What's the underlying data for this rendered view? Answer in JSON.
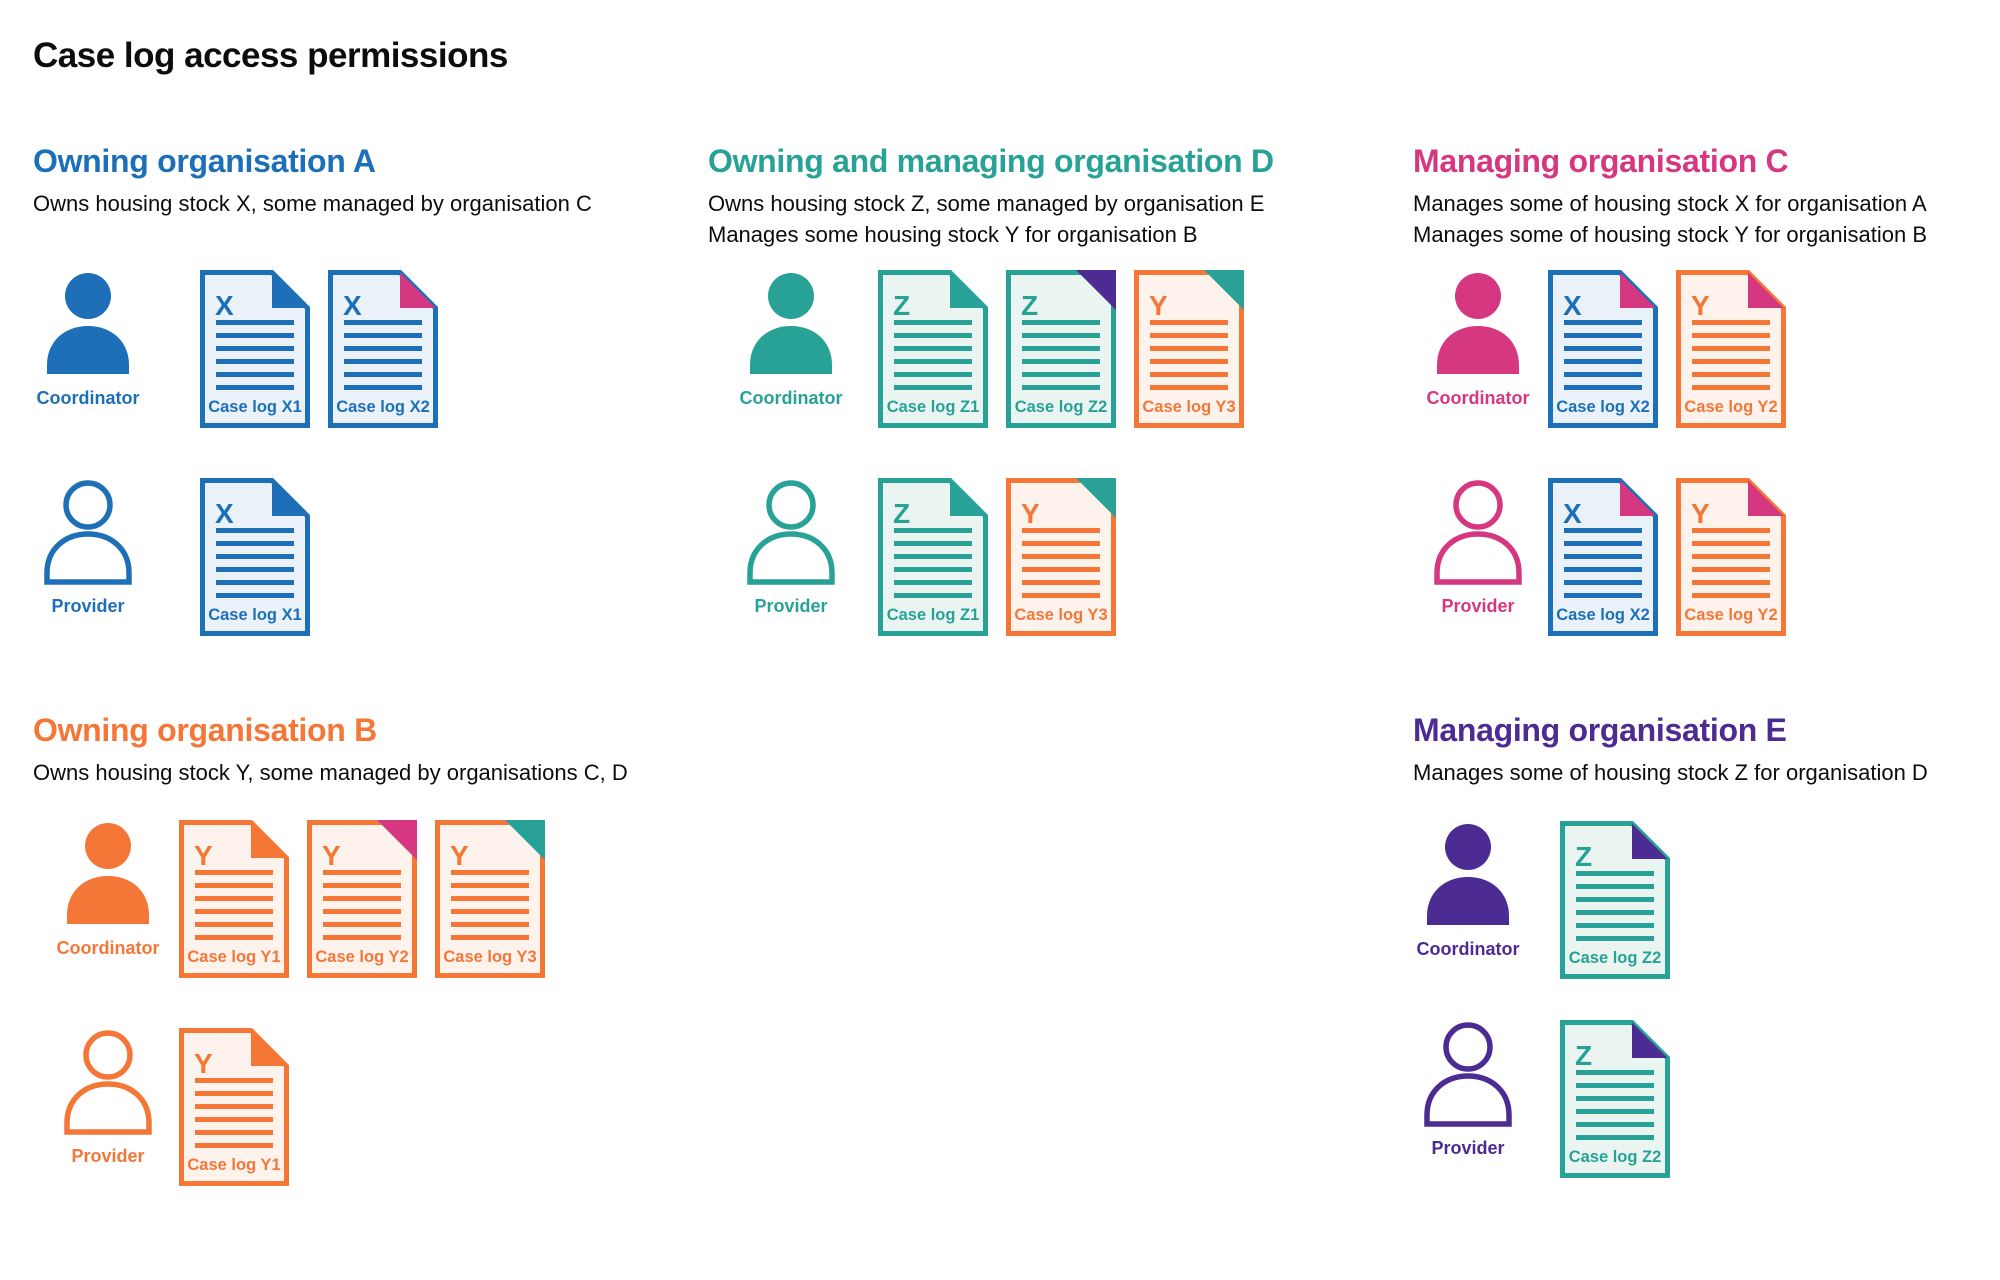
{
  "title": "Case log access permissions",
  "colors": {
    "blue": "#1d70b8",
    "teal": "#28a197",
    "pink": "#d53880",
    "orange": "#f47738",
    "purple": "#4c2c92",
    "text": "#0b0c0c",
    "blue_bg": "#eaf1f8",
    "teal_bg": "#eaf5f2",
    "orange_bg": "#fdf3ec"
  },
  "sections": [
    {
      "id": "owning-organisation-a",
      "heading": "Owning organisation A",
      "color": "blue",
      "subtitle_lines": [
        "Owns housing stock X, some managed by organisation C"
      ],
      "rows": [
        {
          "role": "Coordinator",
          "person_style": "filled",
          "docs": [
            {
              "letter": "X",
              "label": "Case log X1",
              "doc_color": "blue",
              "fold_color": "blue",
              "fold_style": "notch"
            },
            {
              "letter": "X",
              "label": "Case log X2",
              "doc_color": "blue",
              "fold_color": "pink",
              "fold_style": "notch"
            }
          ]
        },
        {
          "role": "Provider",
          "person_style": "outline",
          "docs": [
            {
              "letter": "X",
              "label": "Case log X1",
              "doc_color": "blue",
              "fold_color": "blue",
              "fold_style": "notch"
            }
          ]
        }
      ]
    },
    {
      "id": "owning-and-managing-organisation-d",
      "heading": "Owning and managing organisation D",
      "color": "teal",
      "subtitle_lines": [
        "Owns housing stock Z, some managed by organisation E",
        "Manages some housing stock Y for organisation B"
      ],
      "rows": [
        {
          "role": "Coordinator",
          "person_style": "filled",
          "docs": [
            {
              "letter": "Z",
              "label": "Case log Z1",
              "doc_color": "teal",
              "fold_color": "teal",
              "fold_style": "notch"
            },
            {
              "letter": "Z",
              "label": "Case log Z2",
              "doc_color": "teal",
              "fold_color": "purple",
              "fold_style": "corner"
            },
            {
              "letter": "Y",
              "label": "Case log Y3",
              "doc_color": "orange",
              "fold_color": "teal",
              "fold_style": "corner"
            }
          ]
        },
        {
          "role": "Provider",
          "person_style": "outline",
          "docs": [
            {
              "letter": "Z",
              "label": "Case log Z1",
              "doc_color": "teal",
              "fold_color": "teal",
              "fold_style": "notch"
            },
            {
              "letter": "Y",
              "label": "Case log Y3",
              "doc_color": "orange",
              "fold_color": "teal",
              "fold_style": "corner"
            }
          ]
        }
      ]
    },
    {
      "id": "managing-organisation-c",
      "heading": "Managing organisation C",
      "color": "pink",
      "subtitle_lines": [
        "Manages some of housing stock X for organisation A",
        "Manages some of housing stock Y for organisation B"
      ],
      "rows": [
        {
          "role": "Coordinator",
          "person_style": "filled",
          "docs": [
            {
              "letter": "X",
              "label": "Case log X2",
              "doc_color": "blue",
              "fold_color": "pink",
              "fold_style": "notch"
            },
            {
              "letter": "Y",
              "label": "Case log Y2",
              "doc_color": "orange",
              "fold_color": "pink",
              "fold_style": "notch"
            }
          ]
        },
        {
          "role": "Provider",
          "person_style": "outline",
          "docs": [
            {
              "letter": "X",
              "label": "Case log X2",
              "doc_color": "blue",
              "fold_color": "pink",
              "fold_style": "notch"
            },
            {
              "letter": "Y",
              "label": "Case log Y2",
              "doc_color": "orange",
              "fold_color": "pink",
              "fold_style": "notch"
            }
          ]
        }
      ]
    },
    {
      "id": "owning-organisation-b",
      "heading": "Owning organisation B",
      "color": "orange",
      "subtitle_lines": [
        "Owns housing stock Y, some managed by organisations C, D"
      ],
      "rows": [
        {
          "role": "Coordinator",
          "person_style": "filled",
          "docs": [
            {
              "letter": "Y",
              "label": "Case log Y1",
              "doc_color": "orange",
              "fold_color": "orange",
              "fold_style": "notch"
            },
            {
              "letter": "Y",
              "label": "Case log Y2",
              "doc_color": "orange",
              "fold_color": "pink",
              "fold_style": "corner"
            },
            {
              "letter": "Y",
              "label": "Case log Y3",
              "doc_color": "orange",
              "fold_color": "teal",
              "fold_style": "corner"
            }
          ]
        },
        {
          "role": "Provider",
          "person_style": "outline",
          "docs": [
            {
              "letter": "Y",
              "label": "Case log Y1",
              "doc_color": "orange",
              "fold_color": "orange",
              "fold_style": "notch"
            }
          ]
        }
      ]
    },
    {
      "id": "managing-organisation-e",
      "heading": "Managing organisation E",
      "color": "purple",
      "subtitle_lines": [
        "Manages some of housing stock Z for organisation D"
      ],
      "rows": [
        {
          "role": "Coordinator",
          "person_style": "filled",
          "docs": [
            {
              "letter": "Z",
              "label": "Case log Z2",
              "doc_color": "teal",
              "fold_color": "purple",
              "fold_style": "notch"
            }
          ]
        },
        {
          "role": "Provider",
          "person_style": "outline",
          "docs": [
            {
              "letter": "Z",
              "label": "Case log Z2",
              "doc_color": "teal",
              "fold_color": "purple",
              "fold_style": "notch"
            }
          ]
        }
      ]
    }
  ]
}
